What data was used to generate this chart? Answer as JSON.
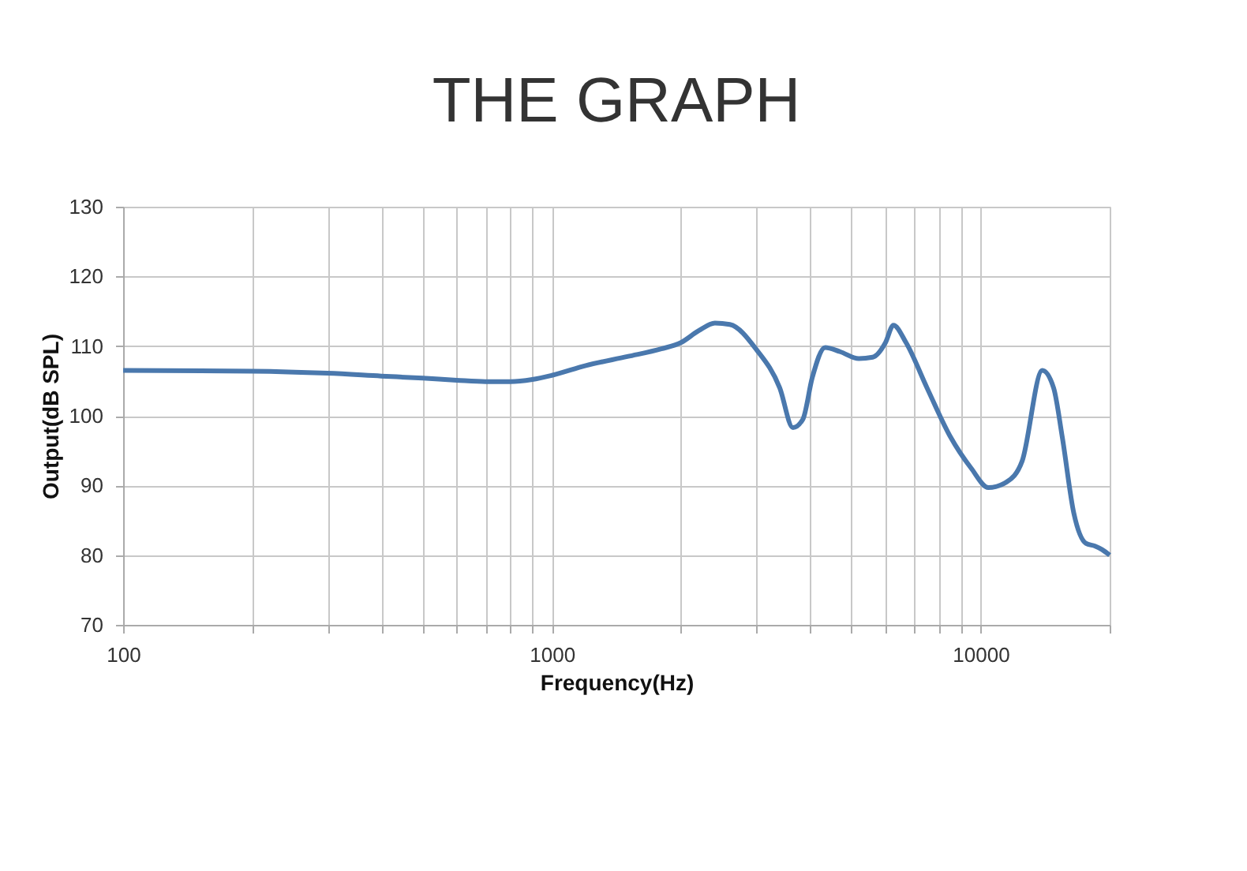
{
  "chart_data": {
    "type": "line",
    "title": "THE GRAPH",
    "xlabel": "Frequency(Hz)",
    "ylabel": "Output(dB SPL)",
    "log": "x",
    "grid": true,
    "legend": false,
    "marker": "none",
    "line_style": "solid",
    "xlim": [
      100,
      20000
    ],
    "ylim": [
      70,
      130
    ],
    "xticks": [
      100,
      {
        "value": 200,
        "label": null
      },
      {
        "value": 300,
        "label": null
      },
      {
        "value": 400,
        "label": null
      },
      {
        "value": 500,
        "label": null
      },
      {
        "value": 600,
        "label": null
      },
      {
        "value": 700,
        "label": null
      },
      {
        "value": 800,
        "label": null
      },
      {
        "value": 900,
        "label": null
      },
      1000,
      {
        "value": 2000,
        "label": null
      },
      {
        "value": 3000,
        "label": null
      },
      {
        "value": 4000,
        "label": null
      },
      {
        "value": 5000,
        "label": null
      },
      {
        "value": 6000,
        "label": null
      },
      {
        "value": 7000,
        "label": null
      },
      {
        "value": 8000,
        "label": null
      },
      {
        "value": 9000,
        "label": null
      },
      10000,
      {
        "value": 20000,
        "label": null
      }
    ],
    "yticks": [
      70,
      80,
      90,
      100,
      110,
      120,
      130
    ],
    "series": [
      {
        "color": "#4a78ad",
        "x": [
          100,
          200,
          300,
          400,
          500,
          600,
          700,
          800,
          900,
          1000,
          1200,
          1500,
          1800,
          2000,
          2200,
          2400,
          2600,
          3000,
          3400,
          3650,
          3850,
          4050,
          4340,
          4700,
          5200,
          5600,
          6000,
          6260,
          6700,
          7500,
          8500,
          9500,
          10430,
          11500,
          12500,
          13930,
          14800,
          15500,
          16500,
          17600,
          18500,
          19200,
          20000
        ],
        "values": [
          106.5,
          106.4,
          106.1,
          105.7,
          105.4,
          105.1,
          104.9,
          104.9,
          105.2,
          105.8,
          107.2,
          108.5,
          109.6,
          110.5,
          112.2,
          113.3,
          113.1,
          109.5,
          104,
          98.3,
          99.5,
          105.5,
          109.8,
          109.2,
          108.2,
          108.4,
          110.5,
          113,
          110.5,
          104,
          97,
          92.5,
          89.7,
          90.5,
          93.5,
          106.5,
          104,
          97,
          86,
          81.7,
          81.3,
          80.8,
          80
        ]
      }
    ]
  }
}
